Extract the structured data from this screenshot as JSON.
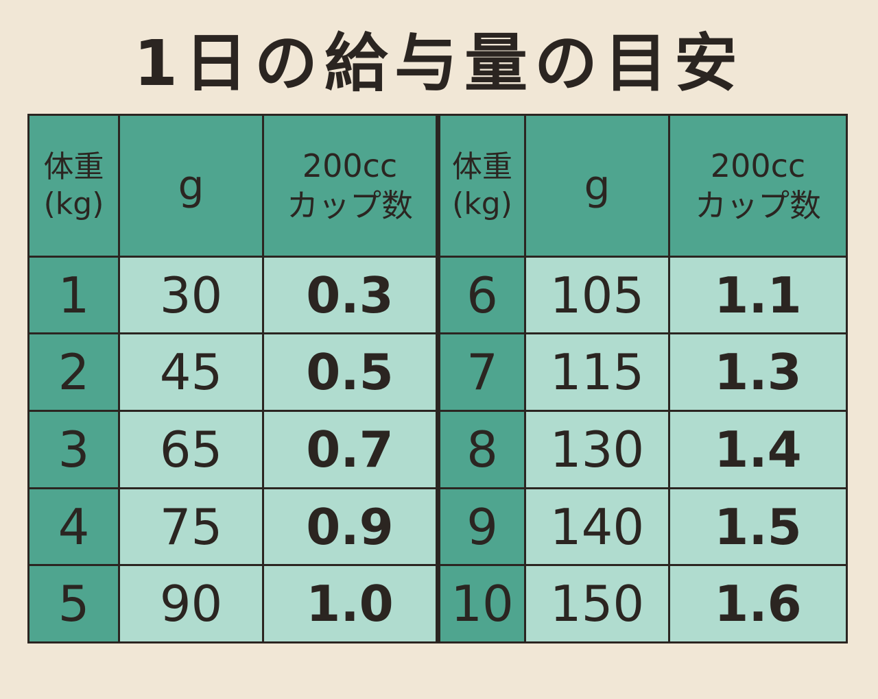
{
  "title": "1日の給与量の目安",
  "headers": {
    "weight_line1": "体重",
    "weight_line2": "(kg)",
    "grams": "g",
    "cup_line1": "200cc",
    "cup_line2": "カップ数"
  },
  "colors": {
    "background": "#f1e7d6",
    "header_green": "#4fa58f",
    "cell_mint": "#b0dccf",
    "text_dark": "#2b2521"
  },
  "rows_left": [
    {
      "weight": "1",
      "grams": "30",
      "cups": "0.3"
    },
    {
      "weight": "2",
      "grams": "45",
      "cups": "0.5"
    },
    {
      "weight": "3",
      "grams": "65",
      "cups": "0.7"
    },
    {
      "weight": "4",
      "grams": "75",
      "cups": "0.9"
    },
    {
      "weight": "5",
      "grams": "90",
      "cups": "1.0"
    }
  ],
  "rows_right": [
    {
      "weight": "6",
      "grams": "105",
      "cups": "1.1"
    },
    {
      "weight": "7",
      "grams": "115",
      "cups": "1.3"
    },
    {
      "weight": "8",
      "grams": "130",
      "cups": "1.4"
    },
    {
      "weight": "9",
      "grams": "140",
      "cups": "1.5"
    },
    {
      "weight": "10",
      "grams": "150",
      "cups": "1.6"
    }
  ]
}
